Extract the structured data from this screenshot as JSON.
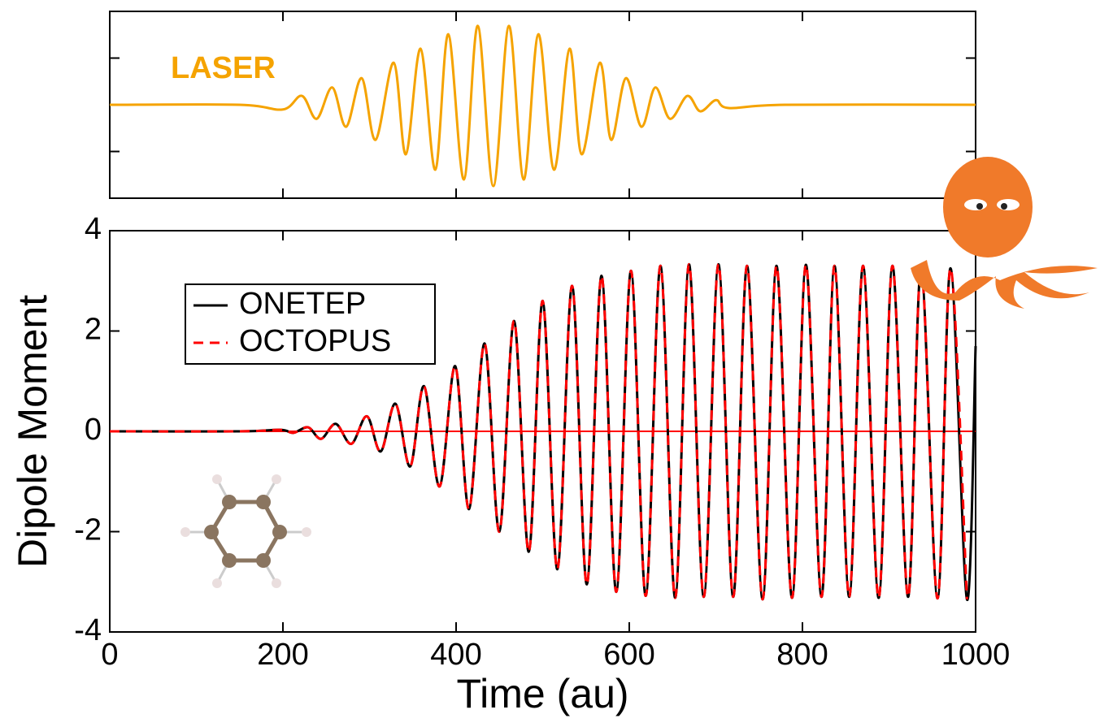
{
  "chart_data": [
    {
      "type": "line",
      "annotation": "LASER",
      "annotation_color": "#f5a300",
      "x": [
        0,
        150,
        200,
        222,
        239,
        257,
        273,
        291,
        307,
        328,
        342,
        359,
        376,
        391,
        409,
        425,
        443,
        461,
        478,
        495,
        513,
        531,
        545,
        566,
        579,
        596,
        614,
        630,
        647,
        667,
        682,
        700,
        715,
        780,
        1000
      ],
      "series": [
        {
          "name": null,
          "color": "#f5a300",
          "values": [
            0,
            0,
            -0.1,
            0.19,
            -0.3,
            0.37,
            -0.47,
            0.57,
            -0.75,
            0.9,
            -1.06,
            1.2,
            -1.39,
            1.51,
            -1.6,
            1.69,
            -1.74,
            1.69,
            -1.6,
            1.51,
            -1.39,
            1.2,
            -1.06,
            0.9,
            -0.75,
            0.57,
            -0.47,
            0.37,
            -0.3,
            0.19,
            -0.14,
            0.1,
            -0.07,
            0,
            0
          ]
        }
      ],
      "xlim": [
        0,
        1000
      ],
      "xticks": [
        0,
        200,
        400,
        600,
        800,
        1000
      ],
      "ylim": [
        -2,
        2
      ],
      "yticks": [
        -1,
        0,
        1
      ],
      "tick_labels": false
    },
    {
      "type": "line",
      "xlabel": "Time (au)",
      "ylabel": "Dipole Moment",
      "legend": "upper left",
      "x": [
        0,
        150,
        197,
        212,
        229,
        244,
        261,
        279,
        297,
        313,
        330,
        347,
        363,
        381,
        399,
        415,
        433,
        450,
        467,
        484,
        500,
        517,
        534,
        551,
        568,
        585,
        602,
        619,
        636,
        653,
        669,
        686,
        703,
        720,
        736,
        754,
        770,
        788,
        804,
        822,
        837,
        854,
        870,
        888,
        904,
        922,
        937,
        956,
        971,
        990,
        1000
      ],
      "series": [
        {
          "name": "ONETEP",
          "color": "#000000",
          "dash": false,
          "values": [
            0,
            0,
            0.03,
            -0.03,
            0.08,
            -0.15,
            0.15,
            -0.25,
            0.3,
            -0.4,
            0.55,
            -0.7,
            0.9,
            -1.1,
            1.3,
            -1.55,
            1.75,
            -2.0,
            2.2,
            -2.4,
            2.6,
            -2.75,
            2.9,
            -3.05,
            3.1,
            -3.2,
            3.2,
            -3.28,
            3.3,
            -3.32,
            3.33,
            -3.3,
            3.33,
            -3.3,
            3.3,
            -3.35,
            3.3,
            -3.32,
            3.32,
            -3.3,
            3.3,
            -3.3,
            3.3,
            -3.32,
            3.3,
            -3.3,
            3.25,
            -3.33,
            3.25,
            -3.35,
            1.7
          ]
        },
        {
          "name": "OCTOPUS",
          "color": "#ff0000",
          "dash": true,
          "values": [
            0,
            0,
            0.03,
            -0.03,
            0.08,
            -0.15,
            0.15,
            -0.25,
            0.3,
            -0.4,
            0.55,
            -0.7,
            0.9,
            -1.1,
            1.3,
            -1.55,
            1.75,
            -2.0,
            2.2,
            -2.4,
            2.6,
            -2.75,
            2.9,
            -3.05,
            3.1,
            -3.2,
            3.2,
            -3.28,
            3.3,
            -3.32,
            3.33,
            -3.3,
            3.33,
            -3.3,
            3.3,
            -3.35,
            3.3,
            -3.32,
            3.32,
            -3.3,
            3.3,
            -3.3,
            3.3,
            -3.32,
            3.3,
            -3.3,
            3.25,
            -3.33,
            3.25,
            -3.35,
            null
          ]
        }
      ],
      "hlines": [
        {
          "value": 0,
          "color": "#ff0000"
        }
      ],
      "xlim": [
        0,
        1000
      ],
      "xticks": [
        0,
        200,
        400,
        600,
        800,
        1000
      ],
      "ylim": [
        -4,
        4
      ],
      "yticks": [
        -4,
        -2,
        0,
        2,
        4
      ]
    }
  ]
}
